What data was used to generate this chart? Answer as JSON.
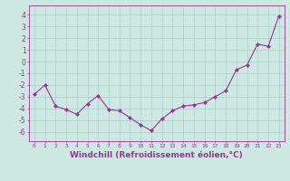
{
  "x": [
    0,
    1,
    2,
    3,
    4,
    5,
    6,
    7,
    8,
    9,
    10,
    11,
    12,
    13,
    14,
    15,
    16,
    17,
    18,
    19,
    20,
    21,
    22,
    23
  ],
  "y": [
    -2.8,
    -2.0,
    -3.8,
    -4.1,
    -4.5,
    -3.6,
    -2.9,
    -4.1,
    -4.2,
    -4.8,
    -5.4,
    -5.9,
    -4.9,
    -4.2,
    -3.8,
    -3.7,
    -3.5,
    -3.0,
    -2.5,
    -0.7,
    -0.3,
    1.5,
    1.3,
    3.9
  ],
  "line_color": "#993399",
  "marker": "D",
  "marker_size": 2,
  "bg_color": "#cce8e0",
  "grid_color": "#aacccc",
  "xlabel": "Windchill (Refroidissement éolien,°C)",
  "xlabel_fontsize": 6.5,
  "ylabel_ticks": [
    -6,
    -5,
    -4,
    -3,
    -2,
    -1,
    0,
    1,
    2,
    3,
    4
  ],
  "xlim": [
    -0.5,
    23.5
  ],
  "ylim": [
    -6.8,
    4.8
  ],
  "title": ""
}
